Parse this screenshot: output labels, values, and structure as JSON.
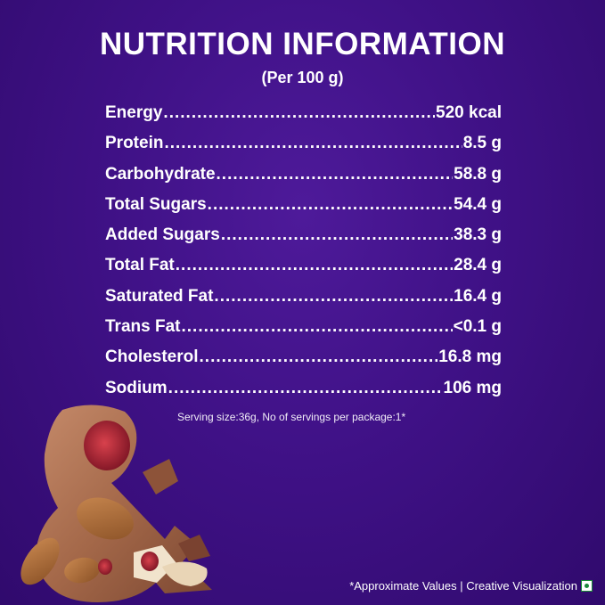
{
  "title": "NUTRITION INFORMATION",
  "subtitle": "(Per 100 g)",
  "nutrients": [
    {
      "label": "Energy",
      "value": "520 kcal"
    },
    {
      "label": "Protein",
      "value": "8.5 g"
    },
    {
      "label": "Carbohydrate",
      "value": "58.8 g"
    },
    {
      "label": "Total Sugars",
      "value": "54.4 g"
    },
    {
      "label": "Added Sugars",
      "value": "38.3 g"
    },
    {
      "label": "Total Fat",
      "value": "28.4 g"
    },
    {
      "label": "Saturated Fat",
      "value": "16.4 g"
    },
    {
      "label": "Trans Fat",
      "value": "<0.1 g"
    },
    {
      "label": "Cholesterol",
      "value": "16.8 mg"
    },
    {
      "label": "Sodium",
      "value": "106 mg"
    }
  ],
  "serving_note": "Serving size:36g, No of servings per package:1*",
  "footer": "*Approximate Values | Creative Visualization",
  "icons": {
    "veg_mark": "vegetarian-mark-icon"
  }
}
